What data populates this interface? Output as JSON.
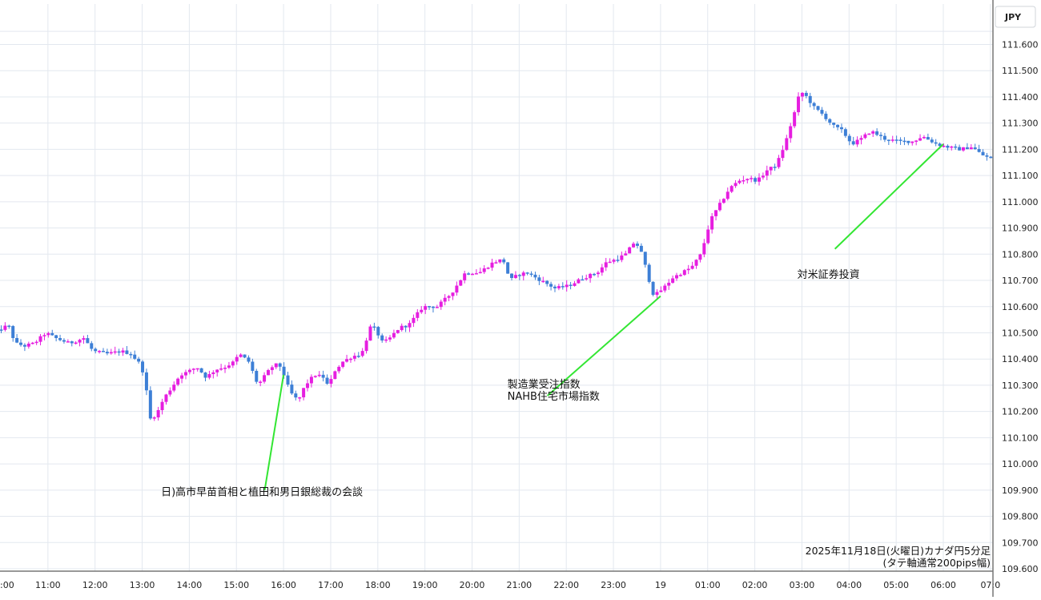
{
  "chart_data": {
    "type": "candlestick",
    "currency_label": "JPY",
    "ylim": [
      109.6,
      111.6
    ],
    "y_ticks": [
      "111.600",
      "111.500",
      "111.400",
      "111.300",
      "111.200",
      "111.100",
      "111.000",
      "110.900",
      "110.800",
      "110.700",
      "110.600",
      "110.500",
      "110.400",
      "110.300",
      "110.200",
      "110.100",
      "110.000",
      "109.900",
      "109.800",
      "109.700",
      "109.600"
    ],
    "x_ticks": [
      ":00",
      "11:00",
      "12:00",
      "13:00",
      "14:00",
      "15:00",
      "16:00",
      "17:00",
      "18:00",
      "19:00",
      "20:00",
      "21:00",
      "22:00",
      "23:00",
      "19",
      "01:00",
      "02:00",
      "03:00",
      "04:00",
      "05:00",
      "06:00",
      "07:0"
    ],
    "x_tick_positions": [
      -0.2,
      1,
      2,
      3,
      4,
      5,
      6,
      7,
      8,
      9,
      10,
      11,
      12,
      13,
      14,
      15,
      16,
      17,
      18,
      19,
      20,
      21
    ],
    "x_range": [
      -0.2,
      21.25
    ],
    "colors": {
      "up": "#e61ee0",
      "down": "#3d7fd6",
      "annotation_line": "#33e633",
      "grid": "#e3e8ef"
    },
    "path_points": [
      [
        -0.2,
        110.49
      ],
      [
        0.0,
        110.51
      ],
      [
        0.2,
        110.53
      ],
      [
        0.35,
        110.46
      ],
      [
        0.55,
        110.45
      ],
      [
        0.75,
        110.46
      ],
      [
        1.0,
        110.5
      ],
      [
        1.2,
        110.48
      ],
      [
        1.5,
        110.46
      ],
      [
        1.8,
        110.48
      ],
      [
        2.0,
        110.43
      ],
      [
        2.3,
        110.42
      ],
      [
        2.6,
        110.43
      ],
      [
        2.8,
        110.42
      ],
      [
        3.0,
        110.38
      ],
      [
        3.1,
        110.33
      ],
      [
        3.2,
        110.17
      ],
      [
        3.35,
        110.19
      ],
      [
        3.5,
        110.25
      ],
      [
        3.7,
        110.3
      ],
      [
        3.85,
        110.34
      ],
      [
        4.0,
        110.35
      ],
      [
        4.2,
        110.37
      ],
      [
        4.4,
        110.33
      ],
      [
        4.6,
        110.36
      ],
      [
        4.8,
        110.37
      ],
      [
        5.0,
        110.39
      ],
      [
        5.1,
        110.42
      ],
      [
        5.3,
        110.39
      ],
      [
        5.5,
        110.3
      ],
      [
        5.7,
        110.35
      ],
      [
        5.85,
        110.38
      ],
      [
        6.0,
        110.37
      ],
      [
        6.1,
        110.31
      ],
      [
        6.2,
        110.27
      ],
      [
        6.35,
        110.24
      ],
      [
        6.5,
        110.3
      ],
      [
        6.7,
        110.34
      ],
      [
        6.9,
        110.33
      ],
      [
        7.0,
        110.29
      ],
      [
        7.1,
        110.35
      ],
      [
        7.3,
        110.39
      ],
      [
        7.5,
        110.41
      ],
      [
        7.7,
        110.42
      ],
      [
        7.9,
        110.53
      ],
      [
        8.0,
        110.51
      ],
      [
        8.15,
        110.46
      ],
      [
        8.3,
        110.48
      ],
      [
        8.5,
        110.52
      ],
      [
        8.7,
        110.53
      ],
      [
        9.0,
        110.6
      ],
      [
        9.3,
        110.6
      ],
      [
        9.6,
        110.65
      ],
      [
        9.9,
        110.73
      ],
      [
        10.2,
        110.73
      ],
      [
        10.5,
        110.77
      ],
      [
        10.7,
        110.78
      ],
      [
        10.85,
        110.7
      ],
      [
        11.0,
        110.72
      ],
      [
        11.2,
        110.73
      ],
      [
        11.5,
        110.7
      ],
      [
        11.8,
        110.67
      ],
      [
        12.1,
        110.68
      ],
      [
        12.4,
        110.71
      ],
      [
        12.7,
        110.73
      ],
      [
        12.9,
        110.77
      ],
      [
        13.1,
        110.78
      ],
      [
        13.3,
        110.8
      ],
      [
        13.5,
        110.85
      ],
      [
        13.65,
        110.8
      ],
      [
        13.8,
        110.7
      ],
      [
        13.9,
        110.64
      ],
      [
        14.1,
        110.67
      ],
      [
        14.3,
        110.71
      ],
      [
        14.5,
        110.73
      ],
      [
        14.7,
        110.75
      ],
      [
        14.9,
        110.8
      ],
      [
        15.1,
        110.93
      ],
      [
        15.3,
        110.99
      ],
      [
        15.5,
        111.05
      ],
      [
        15.7,
        111.08
      ],
      [
        15.9,
        111.09
      ],
      [
        16.1,
        111.08
      ],
      [
        16.3,
        111.12
      ],
      [
        16.5,
        111.14
      ],
      [
        16.7,
        111.23
      ],
      [
        16.9,
        111.35
      ],
      [
        17.0,
        111.42
      ],
      [
        17.1,
        111.41
      ],
      [
        17.3,
        111.36
      ],
      [
        17.5,
        111.33
      ],
      [
        17.7,
        111.29
      ],
      [
        17.9,
        111.27
      ],
      [
        18.1,
        111.22
      ],
      [
        18.3,
        111.24
      ],
      [
        18.5,
        111.27
      ],
      [
        18.8,
        111.24
      ],
      [
        19.1,
        111.23
      ],
      [
        19.4,
        111.23
      ],
      [
        19.6,
        111.25
      ],
      [
        19.9,
        111.22
      ],
      [
        20.1,
        111.21
      ],
      [
        20.4,
        111.2
      ],
      [
        20.65,
        111.21
      ],
      [
        20.85,
        111.18
      ],
      [
        21.1,
        111.16
      ],
      [
        21.25,
        111.12
      ]
    ],
    "annotations": [
      {
        "lines": [
          "日)高市早苗首相と植田和男日銀総裁の会談"
        ],
        "line_from": [
          5.6,
          109.9
        ],
        "line_to": [
          6.0,
          110.34
        ],
        "label_at": [
          3.4,
          109.88
        ]
      },
      {
        "lines": [
          "製造業受注指数",
          "NAHB住宅市場指数"
        ],
        "line_from": [
          11.6,
          110.26
        ],
        "line_to": [
          14.0,
          110.64
        ],
        "label_at": [
          10.75,
          110.29
        ]
      },
      {
        "lines": [
          "対米証券投資"
        ],
        "line_from": [
          17.7,
          110.82
        ],
        "line_to": [
          20.0,
          111.22
        ],
        "label_at": [
          16.9,
          110.71
        ]
      }
    ],
    "caption": [
      "2025年11月18日(火曜日)カナダ円5分足",
      "(タテ軸通常200pips幅)"
    ]
  }
}
